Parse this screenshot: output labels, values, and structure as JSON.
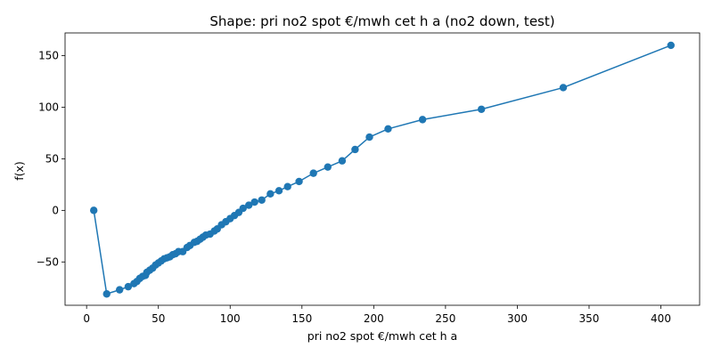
{
  "chart_data": {
    "type": "line",
    "title": "Shape: pri no2 spot €/mwh cet h a (no2 down, test)",
    "xlabel": "pri no2 spot €/mwh cet h a",
    "ylabel": "f(x)",
    "xlim": [
      -15,
      427
    ],
    "ylim": [
      -92,
      172
    ],
    "xticks": [
      0,
      50,
      100,
      150,
      200,
      250,
      300,
      350,
      400
    ],
    "yticks": [
      -50,
      0,
      50,
      100,
      150
    ],
    "grid": false,
    "markers": true,
    "series": [
      {
        "color": "#1f77b4",
        "x": [
          5,
          14,
          23,
          29,
          33,
          35,
          37,
          39,
          41,
          42,
          44,
          46,
          48,
          50,
          52,
          54,
          56,
          58,
          60,
          62,
          64,
          67,
          70,
          72,
          75,
          77,
          79,
          81,
          83,
          86,
          89,
          91,
          94,
          97,
          100,
          103,
          106,
          109,
          113,
          117,
          122,
          128,
          134,
          140,
          148,
          158,
          168,
          178,
          187,
          197,
          210,
          234,
          275,
          332,
          407
        ],
        "y": [
          0,
          -81,
          -77,
          -74,
          -71,
          -69,
          -66,
          -64,
          -63,
          -60,
          -58,
          -56,
          -53,
          -51,
          -49,
          -47,
          -46,
          -45,
          -43,
          -42,
          -40,
          -40,
          -36,
          -34,
          -31,
          -30,
          -28,
          -26,
          -24,
          -23,
          -20,
          -18,
          -14,
          -11,
          -8,
          -5,
          -2,
          2,
          5,
          8,
          10,
          16,
          19,
          23,
          28,
          36,
          42,
          48,
          59,
          71,
          79,
          88,
          98,
          119,
          160
        ]
      }
    ]
  }
}
